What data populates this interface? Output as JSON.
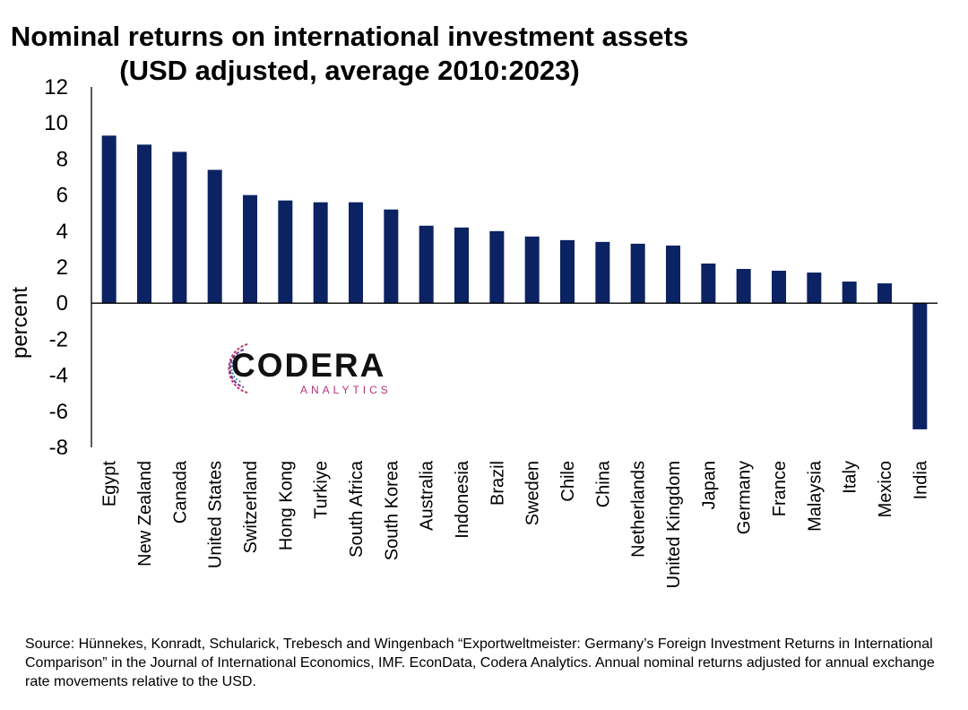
{
  "chart_data": {
    "type": "bar",
    "title": "Nominal returns on international investment assets",
    "subtitle": "(USD adjusted, average 2010:2023)",
    "xlabel": "",
    "ylabel": "percent",
    "ylim": [
      -8,
      12
    ],
    "yticks": [
      12,
      10,
      8,
      6,
      4,
      2,
      0,
      -2,
      -4,
      -6,
      -8
    ],
    "grid": false,
    "legend": "none",
    "bar_color": "#0b2263",
    "categories": [
      "Egypt",
      "New Zealand",
      "Canada",
      "United States",
      "Switzerland",
      "Hong Kong",
      "Turkiye",
      "South Africa",
      "South Korea",
      "Australia",
      "Indonesia",
      "Brazil",
      "Sweden",
      "Chile",
      "China",
      "Netherlands",
      "United Kingdom",
      "Japan",
      "Germany",
      "France",
      "Malaysia",
      "Italy",
      "Mexico",
      "India"
    ],
    "values": [
      9.3,
      8.8,
      8.4,
      7.4,
      6.0,
      5.7,
      5.6,
      5.6,
      5.2,
      4.3,
      4.2,
      4.0,
      3.7,
      3.5,
      3.4,
      3.3,
      3.2,
      2.2,
      1.9,
      1.8,
      1.7,
      1.2,
      1.1,
      -7.0
    ]
  },
  "logo": {
    "name": "CODERA",
    "tagline": "ANALYTICS"
  },
  "source_note": "Source: Hünnekes, Konradt, Schularick, Trebesch and Wingenbach “Exportweltmeister: Germany’s Foreign Investment Returns in International Comparison” in the Journal of International Economics, IMF. EconData, Codera Analytics. Annual nominal returns adjusted for annual exchange rate movements relative to the USD."
}
